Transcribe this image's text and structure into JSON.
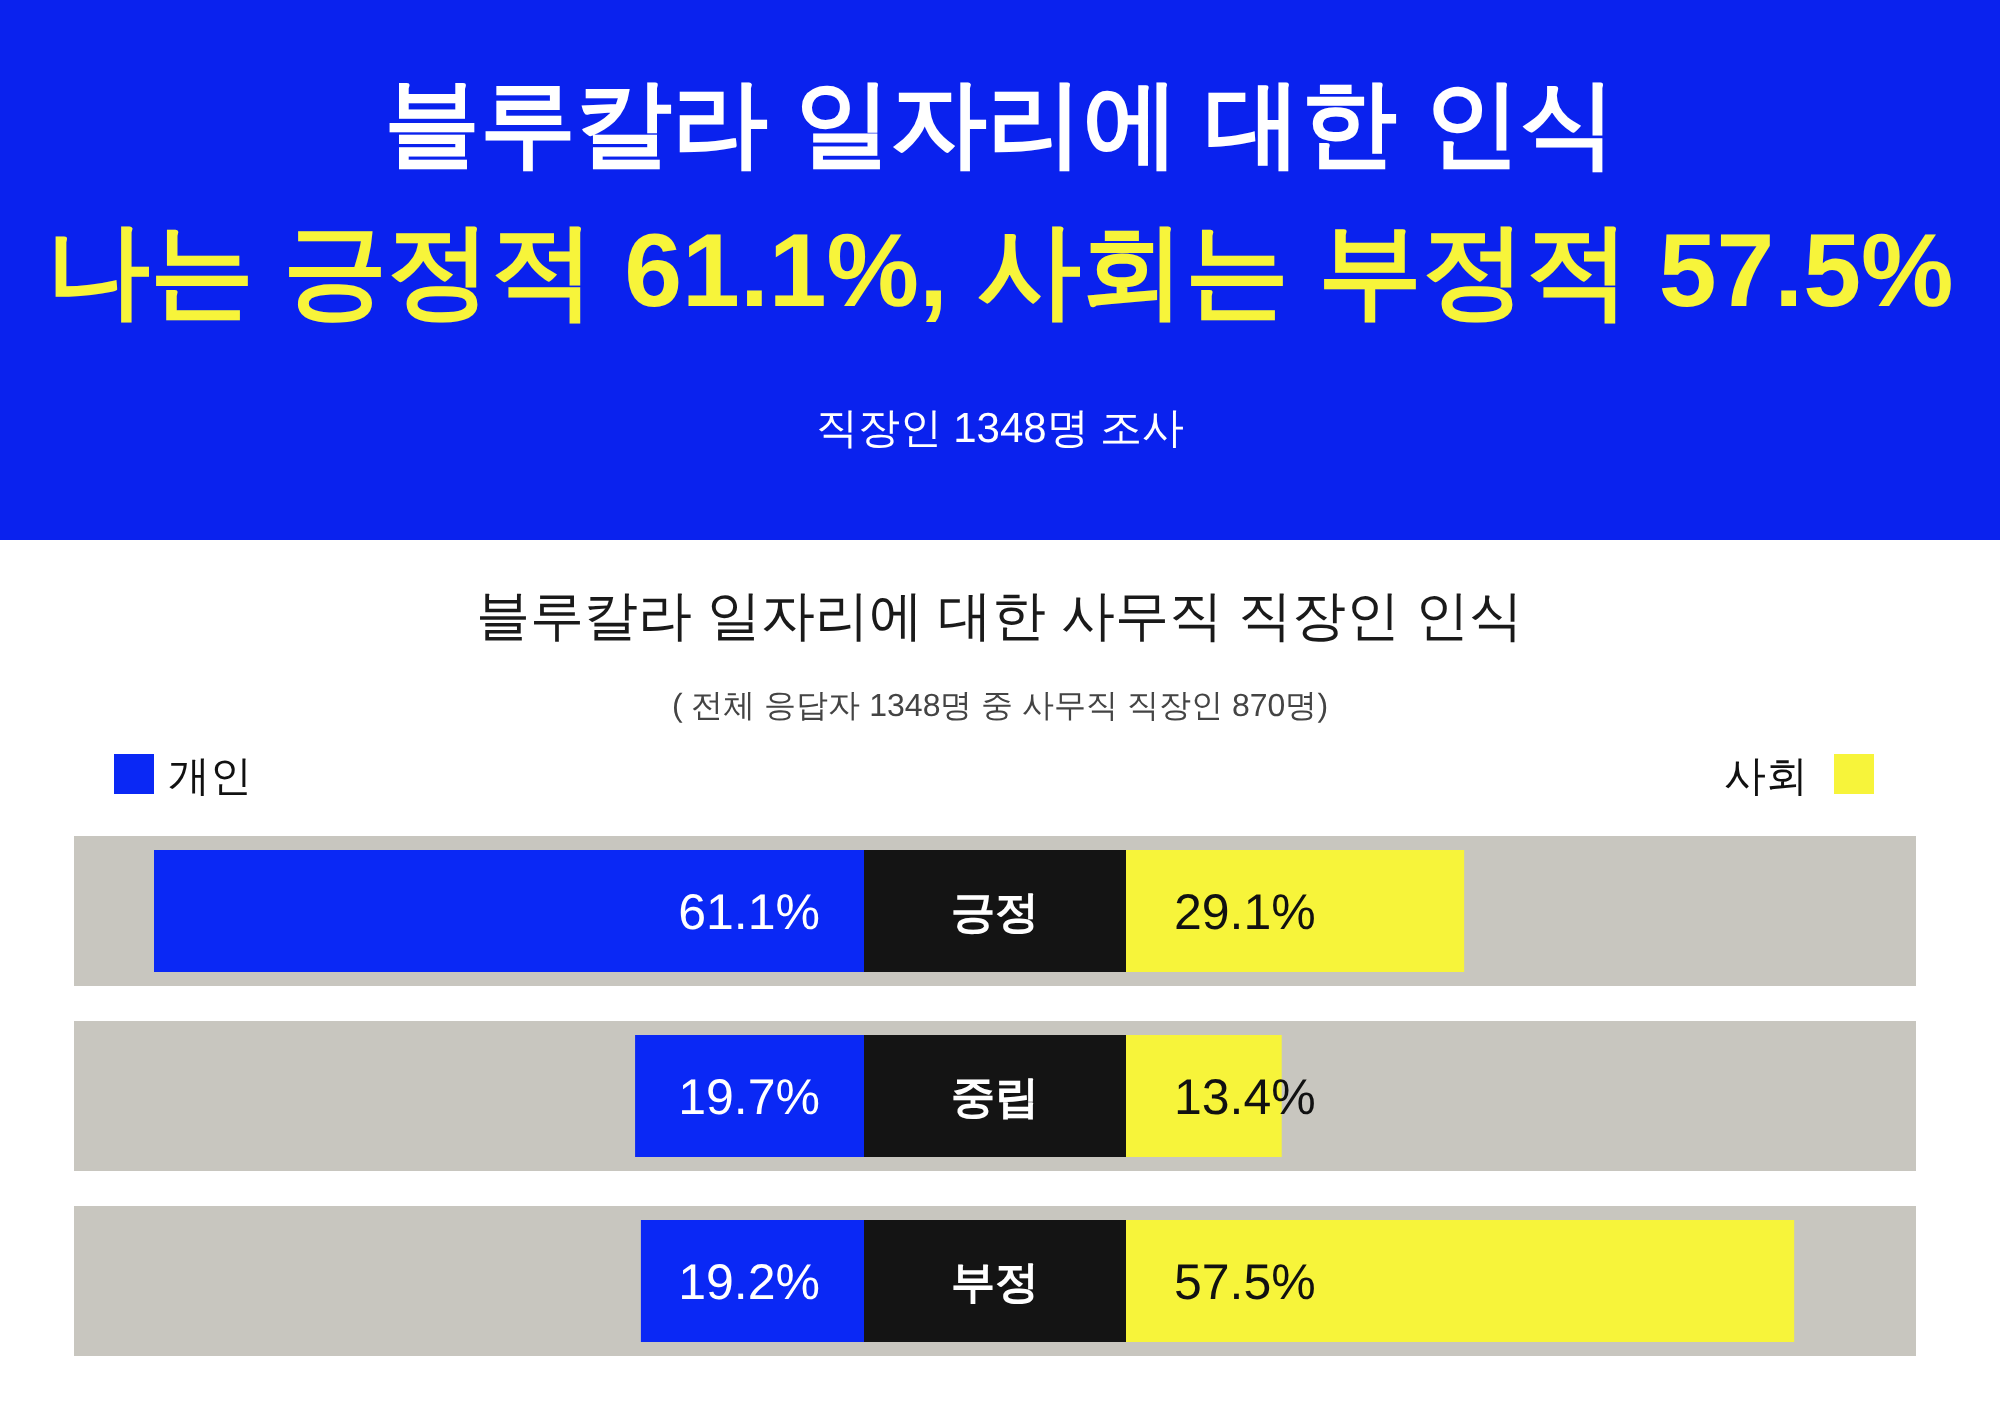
{
  "chart_data": [
    {
      "type": "bar",
      "orientation": "horizontal",
      "title": "블루칼라 일자리에 대한 인식",
      "subtitle": "나는 긍정적 61.1%, 사회는 부정적 57.5%",
      "annotations": [
        "직장인 1348명 조사",
        "블루칼라 일자리에 대한 사무직 직장인 인식",
        "(  전체 응답자 1348명 중 사무직 직장인 870명)"
      ],
      "categories": [
        "긍정",
        "중립",
        "부정"
      ],
      "series": [
        {
          "name": "개인",
          "color": "#0a28f5",
          "values": [
            61.1,
            19.7,
            19.2
          ],
          "value_labels": [
            "61.1%",
            "19.7%",
            "19.2%"
          ]
        }
      ],
      "bands": [
        {
          "axis": "y",
          "from": "긍정",
          "to": "긍정",
          "color": "#c8c6bf"
        },
        {
          "axis": "y",
          "from": "중립",
          "to": "중립",
          "color": "#c8c6bf"
        },
        {
          "axis": "y",
          "from": "부정",
          "to": "부정",
          "color": "#c8c6bf"
        }
      ],
      "legend": "top left"
    },
    {
      "type": "bar",
      "orientation": "horizontal",
      "categories": [
        "긍정",
        "중립",
        "부정"
      ],
      "series": [
        {
          "name": "사회",
          "color": "#f7f43a",
          "values": [
            29.1,
            13.4,
            57.5
          ],
          "value_labels": [
            "29.1%",
            "13.4%",
            "57.5%"
          ]
        }
      ],
      "bands": [
        {
          "axis": "y",
          "from": "긍정",
          "to": "긍정",
          "color": "#c8c6bf"
        },
        {
          "axis": "y",
          "from": "중립",
          "to": "중립",
          "color": "#c8c6bf"
        },
        {
          "axis": "y",
          "from": "부정",
          "to": "부정",
          "color": "#c8c6bf"
        }
      ],
      "legend": "top right",
      "tick_labels": false
    }
  ]
}
